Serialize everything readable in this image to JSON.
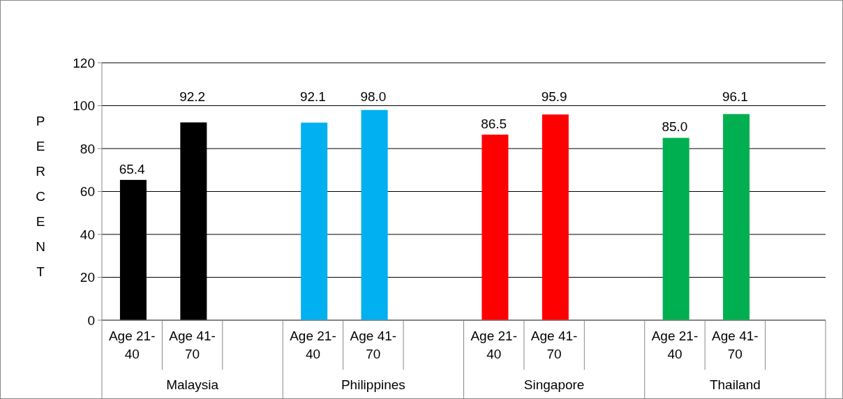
{
  "chart_data": {
    "type": "bar",
    "ylabel": "PERCENT",
    "categories": [
      "Age 21-40",
      "Age 41-70",
      null,
      "Age 21-40",
      "Age 41-70",
      null,
      "Age 21-40",
      "Age 41-70",
      null,
      "Age 21-40",
      "Age 41-70",
      null
    ],
    "values": [
      65.4,
      92.2,
      null,
      92.1,
      98.0,
      null,
      86.5,
      95.9,
      null,
      85.0,
      96.1,
      null
    ],
    "colors": [
      "#000000",
      "#000000",
      null,
      "#00b0f0",
      "#00b0f0",
      null,
      "#ff0000",
      "#ff0000",
      null,
      "#00b050",
      "#00b050",
      null
    ],
    "value_labels": [
      "65.4",
      "92.2",
      null,
      "92.1",
      "98.0",
      null,
      "86.5",
      "95.9",
      null,
      "85.0",
      "96.1",
      null
    ],
    "annotations": [
      "Malaysia",
      "Philippines",
      "Singapore",
      "Thailand"
    ],
    "ylim": [
      0,
      120
    ],
    "yticks": [
      0,
      20,
      40,
      60,
      80,
      100,
      120
    ],
    "grid": "y"
  }
}
